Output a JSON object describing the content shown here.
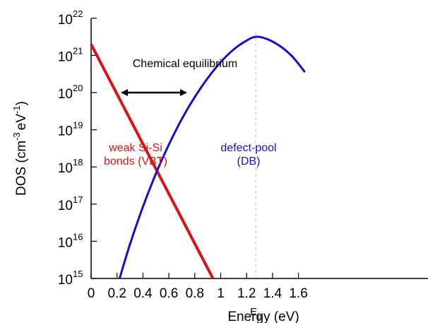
{
  "chart_data": {
    "type": "line",
    "xlabel": "Energy (eV)",
    "ylabel_main": "DOS (cm",
    "ylabel_exp1": "-3",
    "ylabel_mid": "eV",
    "ylabel_exp2": "-1",
    "ylabel_end": ")",
    "xlim": [
      0,
      1.65
    ],
    "ylim": [
      15,
      22
    ],
    "yscale": "log10",
    "xticks": [
      "0",
      "0.2",
      "0.4",
      "0.6",
      "0.8",
      "1",
      "1.2",
      "1.4",
      "1.6"
    ],
    "xtick_values": [
      0,
      0.2,
      0.4,
      0.6,
      0.8,
      1.0,
      1.2,
      1.4,
      1.6
    ],
    "yticks_base": "10",
    "ytick_exponents": [
      "15",
      "16",
      "17",
      "18",
      "19",
      "20",
      "21",
      "22"
    ],
    "grid": false,
    "series": [
      {
        "label_line1": "weak Si-Si",
        "label_line2": "bonds (VBT)",
        "color": "#dd1111",
        "x": [
          0.0,
          0.94
        ],
        "y_log10": [
          21.3,
          15.0
        ]
      },
      {
        "label_line1": "defect-pool",
        "label_line2": "(DB)",
        "color": "#1111cc",
        "x": [
          0.22,
          0.3,
          0.4,
          0.5,
          0.6,
          0.7,
          0.8,
          0.9,
          1.0,
          1.1,
          1.2,
          1.27,
          1.35,
          1.45,
          1.55,
          1.65
        ],
        "y_log10": [
          15.0,
          15.92,
          16.93,
          17.82,
          18.6,
          19.29,
          19.88,
          20.39,
          20.82,
          21.16,
          21.4,
          21.5,
          21.45,
          21.27,
          20.98,
          20.55
        ]
      }
    ],
    "annotations": {
      "equilibrium_text": "Chemical equilibrium",
      "equilibrium_arrow_x": [
        0.24,
        0.73
      ],
      "equilibrium_arrow_y_log10": 20.0,
      "ep_x": 1.27,
      "ep_main": "E",
      "ep_sub": "p"
    }
  }
}
